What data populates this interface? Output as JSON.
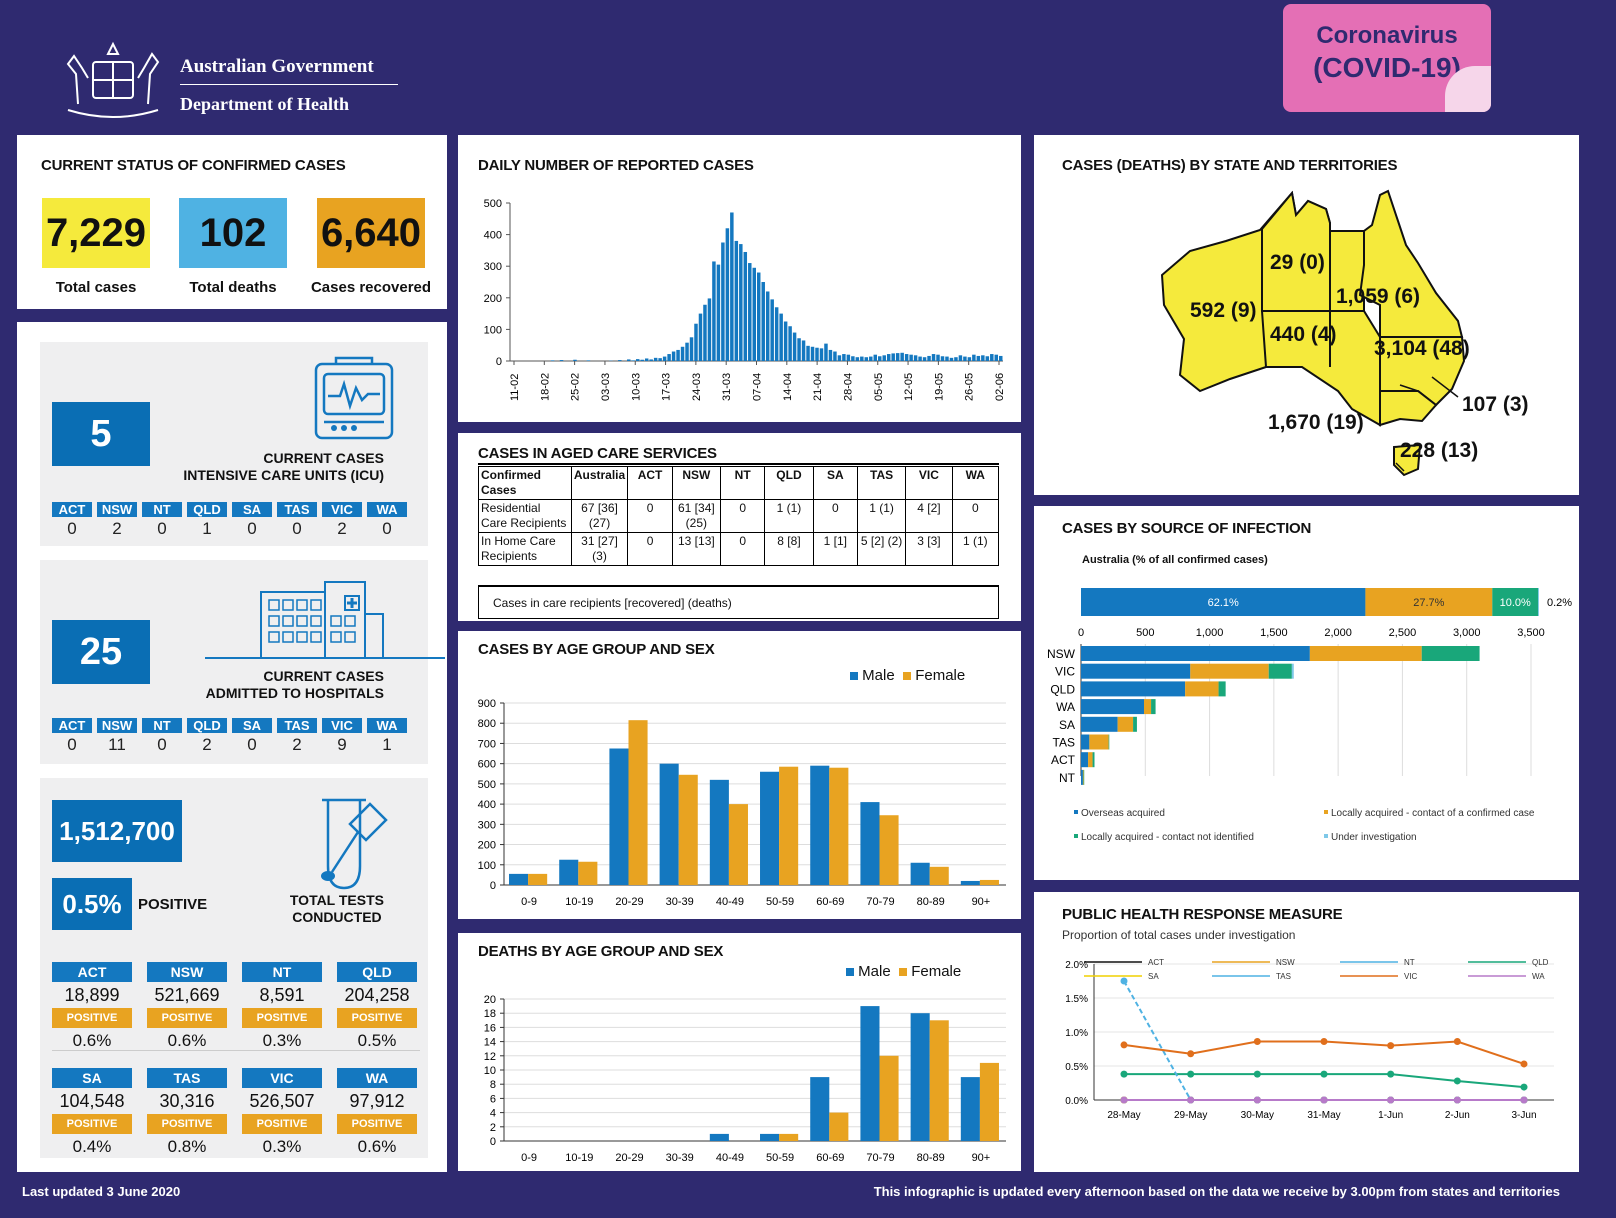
{
  "header": {
    "gov_line1": "Australian Government",
    "gov_line2": "Department of Health",
    "badge_line1": "Coronavirus",
    "badge_line2": "(COVID-19)"
  },
  "status": {
    "title": "CURRENT STATUS OF CONFIRMED CASES",
    "total_cases": "7,229",
    "total_cases_label": "Total cases",
    "total_deaths": "102",
    "total_deaths_label": "Total deaths",
    "recovered": "6,640",
    "recovered_label": "Cases recovered",
    "colors": {
      "cases": "#f5ea3c",
      "deaths": "#4fb2e3",
      "recovered": "#e8a321"
    }
  },
  "icu": {
    "value": "5",
    "caption_line1": "CURRENT CASES",
    "caption_line2": "INTENSIVE CARE UNITS (ICU)",
    "states": [
      "ACT",
      "NSW",
      "NT",
      "QLD",
      "SA",
      "TAS",
      "VIC",
      "WA"
    ],
    "values": [
      "0",
      "2",
      "0",
      "1",
      "0",
      "0",
      "2",
      "0"
    ]
  },
  "hospital": {
    "value": "25",
    "caption_line1": "CURRENT CASES",
    "caption_line2": "ADMITTED TO HOSPITALS",
    "states": [
      "ACT",
      "NSW",
      "NT",
      "QLD",
      "SA",
      "TAS",
      "VIC",
      "WA"
    ],
    "values": [
      "0",
      "11",
      "0",
      "2",
      "0",
      "2",
      "9",
      "1"
    ]
  },
  "tests": {
    "total": "1,512,700",
    "positive_pct": "0.5%",
    "positive_label": "POSITIVE",
    "caption_line1": "TOTAL TESTS",
    "caption_line2": "CONDUCTED",
    "positive_tag": "POSITIVE",
    "row1": [
      {
        "state": "ACT",
        "tests": "18,899",
        "pct": "0.6%"
      },
      {
        "state": "NSW",
        "tests": "521,669",
        "pct": "0.6%"
      },
      {
        "state": "NT",
        "tests": "8,591",
        "pct": "0.3%"
      },
      {
        "state": "QLD",
        "tests": "204,258",
        "pct": "0.5%"
      }
    ],
    "row2": [
      {
        "state": "SA",
        "tests": "104,548",
        "pct": "0.4%"
      },
      {
        "state": "TAS",
        "tests": "30,316",
        "pct": "0.8%"
      },
      {
        "state": "VIC",
        "tests": "526,507",
        "pct": "0.3%"
      },
      {
        "state": "WA",
        "tests": "97,912",
        "pct": "0.6%"
      }
    ]
  },
  "daily": {
    "title": "DAILY NUMBER OF REPORTED CASES",
    "yticks": [
      "0",
      "100",
      "200",
      "300",
      "400",
      "500"
    ],
    "xticks": [
      "11-02",
      "18-02",
      "25-02",
      "03-03",
      "10-03",
      "17-03",
      "24-03",
      "31-03",
      "07-04",
      "14-04",
      "21-04",
      "28-04",
      "05-05",
      "12-05",
      "19-05",
      "26-05",
      "02-06"
    ]
  },
  "aged": {
    "title": "CASES IN AGED CARE SERVICES",
    "header": [
      "Confirmed Cases",
      "Australia",
      "ACT",
      "NSW",
      "NT",
      "QLD",
      "SA",
      "TAS",
      "VIC",
      "WA"
    ],
    "rows": [
      [
        "Residential Care Recipients",
        "67 [36] (27)",
        "0",
        "61 [34] (25)",
        "0",
        "1 (1)",
        "0",
        "1 (1)",
        "4 [2]",
        "0"
      ],
      [
        "In Home Care Recipients",
        "31 [27] (3)",
        "0",
        "13 [13]",
        "0",
        "8 [8]",
        "1 [1]",
        "5 [2] (2)",
        "3 [3]",
        "1 (1)"
      ]
    ],
    "note": "Cases in care recipients [recovered] (deaths)"
  },
  "age_cases": {
    "title": "CASES BY AGE GROUP AND SEX",
    "legend_male": "Male",
    "legend_female": "Female",
    "yticks": [
      "0",
      "100",
      "200",
      "300",
      "400",
      "500",
      "600",
      "700",
      "800",
      "900"
    ]
  },
  "age_deaths": {
    "title": "DEATHS BY AGE GROUP AND SEX",
    "legend_male": "Male",
    "legend_female": "Female",
    "yticks": [
      "0",
      "2",
      "4",
      "6",
      "8",
      "10",
      "12",
      "14",
      "16",
      "18",
      "20"
    ]
  },
  "states_map": {
    "title": "CASES (DEATHS) BY STATE AND TERRITORIES",
    "wa": "592 (9)",
    "nt": "29 (0)",
    "qld": "1,059 (6)",
    "sa": "440 (4)",
    "nsw": "3,104 (48)",
    "act": "107 (3)",
    "vic": "1,670 (19)",
    "tas": "228 (13)"
  },
  "source": {
    "title": "CASES BY SOURCE OF INFECTION",
    "subtitle": "Australia (% of all confirmed cases)",
    "pct_labels": [
      "62.1%",
      "27.7%",
      "10.0%",
      "0.2%"
    ],
    "xticks": [
      "0",
      "500",
      "1,000",
      "1,500",
      "2,000",
      "2,500",
      "3,000",
      "3,500"
    ],
    "legend": [
      "Overseas acquired",
      "Locally acquired - contact of a confirmed case",
      "Locally acquired - contact not identified",
      "Under investigation"
    ]
  },
  "phr": {
    "title": "PUBLIC HEALTH RESPONSE MEASURE",
    "subtitle": "Proportion of total cases under investigation",
    "yticks": [
      "0.0%",
      "0.5%",
      "1.0%",
      "1.5%",
      "2.0%"
    ],
    "xticks": [
      "28-May",
      "29-May",
      "30-May",
      "31-May",
      "1-Jun",
      "2-Jun",
      "3-Jun"
    ],
    "legend": [
      "ACT",
      "NSW",
      "NT",
      "QLD",
      "SA",
      "TAS",
      "VIC",
      "WA"
    ]
  },
  "footer": {
    "left": "Last updated 3 June 2020",
    "right": "This infographic is updated every afternoon based on the data we receive by 3.00pm from states and territories"
  },
  "chart_data": [
    {
      "type": "bar",
      "title": "DAILY NUMBER OF REPORTED CASES",
      "ylim": [
        0,
        500
      ],
      "x_start": "11-02",
      "x_end": "03-06",
      "values": [
        0,
        0,
        0,
        0,
        0,
        0,
        0,
        0,
        0,
        2,
        0,
        3,
        0,
        0,
        4,
        0,
        0,
        2,
        0,
        0,
        0,
        0,
        1,
        0,
        3,
        0,
        5,
        2,
        6,
        4,
        8,
        5,
        10,
        9,
        14,
        22,
        30,
        35,
        45,
        58,
        75,
        118,
        150,
        178,
        198,
        315,
        305,
        375,
        420,
        470,
        380,
        370,
        345,
        310,
        295,
        280,
        250,
        220,
        195,
        170,
        150,
        125,
        110,
        90,
        72,
        65,
        48,
        45,
        42,
        40,
        55,
        35,
        30,
        18,
        22,
        20,
        15,
        12,
        14,
        12,
        14,
        20,
        15,
        18,
        22,
        24,
        25,
        26,
        22,
        20,
        18,
        14,
        12,
        16,
        22,
        20,
        15,
        14,
        10,
        12,
        18,
        14,
        12,
        20,
        16,
        18,
        15,
        22,
        20,
        16
      ]
    },
    {
      "type": "bar",
      "title": "CASES BY AGE GROUP AND SEX",
      "categories": [
        "0-9",
        "10-19",
        "20-29",
        "30-39",
        "40-49",
        "50-59",
        "60-69",
        "70-79",
        "80-89",
        "90+"
      ],
      "ylim": [
        0,
        900
      ],
      "series": [
        {
          "name": "Male",
          "color": "#1478c0",
          "values": [
            55,
            125,
            675,
            600,
            520,
            560,
            590,
            410,
            110,
            20
          ]
        },
        {
          "name": "Female",
          "color": "#e8a321",
          "values": [
            55,
            115,
            815,
            545,
            400,
            585,
            580,
            345,
            90,
            25
          ]
        }
      ]
    },
    {
      "type": "bar",
      "title": "DEATHS BY AGE GROUP AND SEX",
      "categories": [
        "0-9",
        "10-19",
        "20-29",
        "30-39",
        "40-49",
        "50-59",
        "60-69",
        "70-79",
        "80-89",
        "90+"
      ],
      "ylim": [
        0,
        20
      ],
      "series": [
        {
          "name": "Male",
          "color": "#1478c0",
          "values": [
            0,
            0,
            0,
            0,
            1,
            1,
            9,
            19,
            18,
            9
          ]
        },
        {
          "name": "Female",
          "color": "#e8a321",
          "values": [
            0,
            0,
            0,
            0,
            0,
            1,
            4,
            12,
            17,
            11
          ]
        }
      ]
    },
    {
      "type": "bar",
      "title": "CASES BY SOURCE OF INFECTION",
      "categories": [
        "NSW",
        "VIC",
        "QLD",
        "WA",
        "SA",
        "TAS",
        "ACT",
        "NT"
      ],
      "xlim": [
        0,
        3500
      ],
      "series": [
        {
          "name": "Overseas acquired",
          "color": "#1478c0",
          "values": [
            1780,
            850,
            810,
            490,
            285,
            65,
            55,
            15
          ]
        },
        {
          "name": "Locally acquired - contact of a confirmed case",
          "color": "#e8a321",
          "values": [
            870,
            610,
            260,
            55,
            120,
            150,
            35,
            5
          ]
        },
        {
          "name": "Locally acquired - contact not identified",
          "color": "#19a77a",
          "values": [
            450,
            180,
            55,
            35,
            30,
            5,
            15,
            5
          ]
        },
        {
          "name": "Under investigation",
          "color": "#7ec8e8",
          "values": [
            0,
            15,
            0,
            0,
            0,
            0,
            0,
            0
          ]
        }
      ]
    },
    {
      "type": "line",
      "title": "PUBLIC HEALTH RESPONSE MEASURE",
      "x": [
        "28-May",
        "29-May",
        "30-May",
        "31-May",
        "1-Jun",
        "2-Jun",
        "3-Jun"
      ],
      "ylim": [
        0,
        0.02
      ],
      "series": [
        {
          "name": "ACT",
          "color": "#111111",
          "values": [
            0,
            0,
            0,
            0,
            0,
            0,
            0
          ]
        },
        {
          "name": "NSW",
          "color": "#e8a321",
          "values": [
            0,
            0,
            0,
            0,
            0,
            0,
            0
          ]
        },
        {
          "name": "NT",
          "color": "#4fb2e3",
          "values": [
            0,
            0,
            0,
            0,
            0,
            0,
            0
          ]
        },
        {
          "name": "QLD",
          "color": "#19a77a",
          "values": [
            0.0038,
            0.0038,
            0.0038,
            0.0038,
            0.0038,
            0.0028,
            0.0019
          ]
        },
        {
          "name": "SA",
          "color": "#f0d000",
          "values": [
            0,
            0,
            0,
            0,
            0,
            0,
            0
          ]
        },
        {
          "name": "TAS",
          "color": "#4fb2e3",
          "values": [
            0.0175,
            0,
            0,
            0,
            0,
            0,
            0
          ]
        },
        {
          "name": "VIC",
          "color": "#e06f1c",
          "values": [
            0.0081,
            0.0068,
            0.0086,
            0.0086,
            0.008,
            0.0086,
            0.0053
          ]
        },
        {
          "name": "WA",
          "color": "#b77ac9",
          "values": [
            0,
            0,
            0,
            0,
            0,
            0,
            0
          ]
        }
      ]
    }
  ]
}
